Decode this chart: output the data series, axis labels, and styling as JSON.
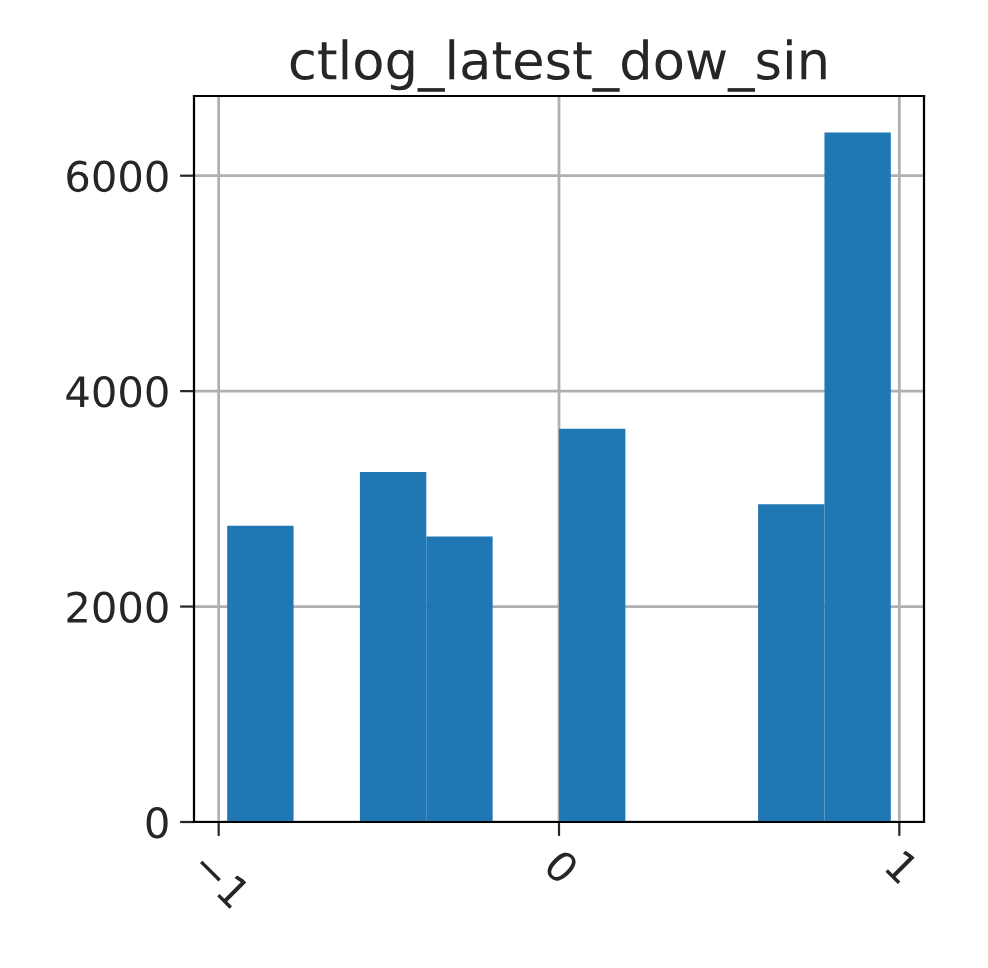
{
  "chart_data": {
    "type": "histogram",
    "title": "ctlog_latest_dow_sin",
    "bins": [
      -0.975,
      -0.78,
      -0.585,
      -0.39,
      -0.195,
      0,
      0.195,
      0.39,
      0.585,
      0.78,
      0.975
    ],
    "values": [
      2750,
      0,
      3250,
      2650,
      0,
      3650,
      0,
      0,
      2950,
      6400
    ],
    "color": "#1f77b4",
    "xlim": [
      -1.0725,
      1.0725
    ],
    "xticks": [
      {
        "value": -1,
        "label": "−1"
      },
      0,
      1
    ],
    "ylim": [
      0,
      6740
    ],
    "yticks": [
      0,
      2000,
      4000,
      6000
    ],
    "grid": true
  }
}
